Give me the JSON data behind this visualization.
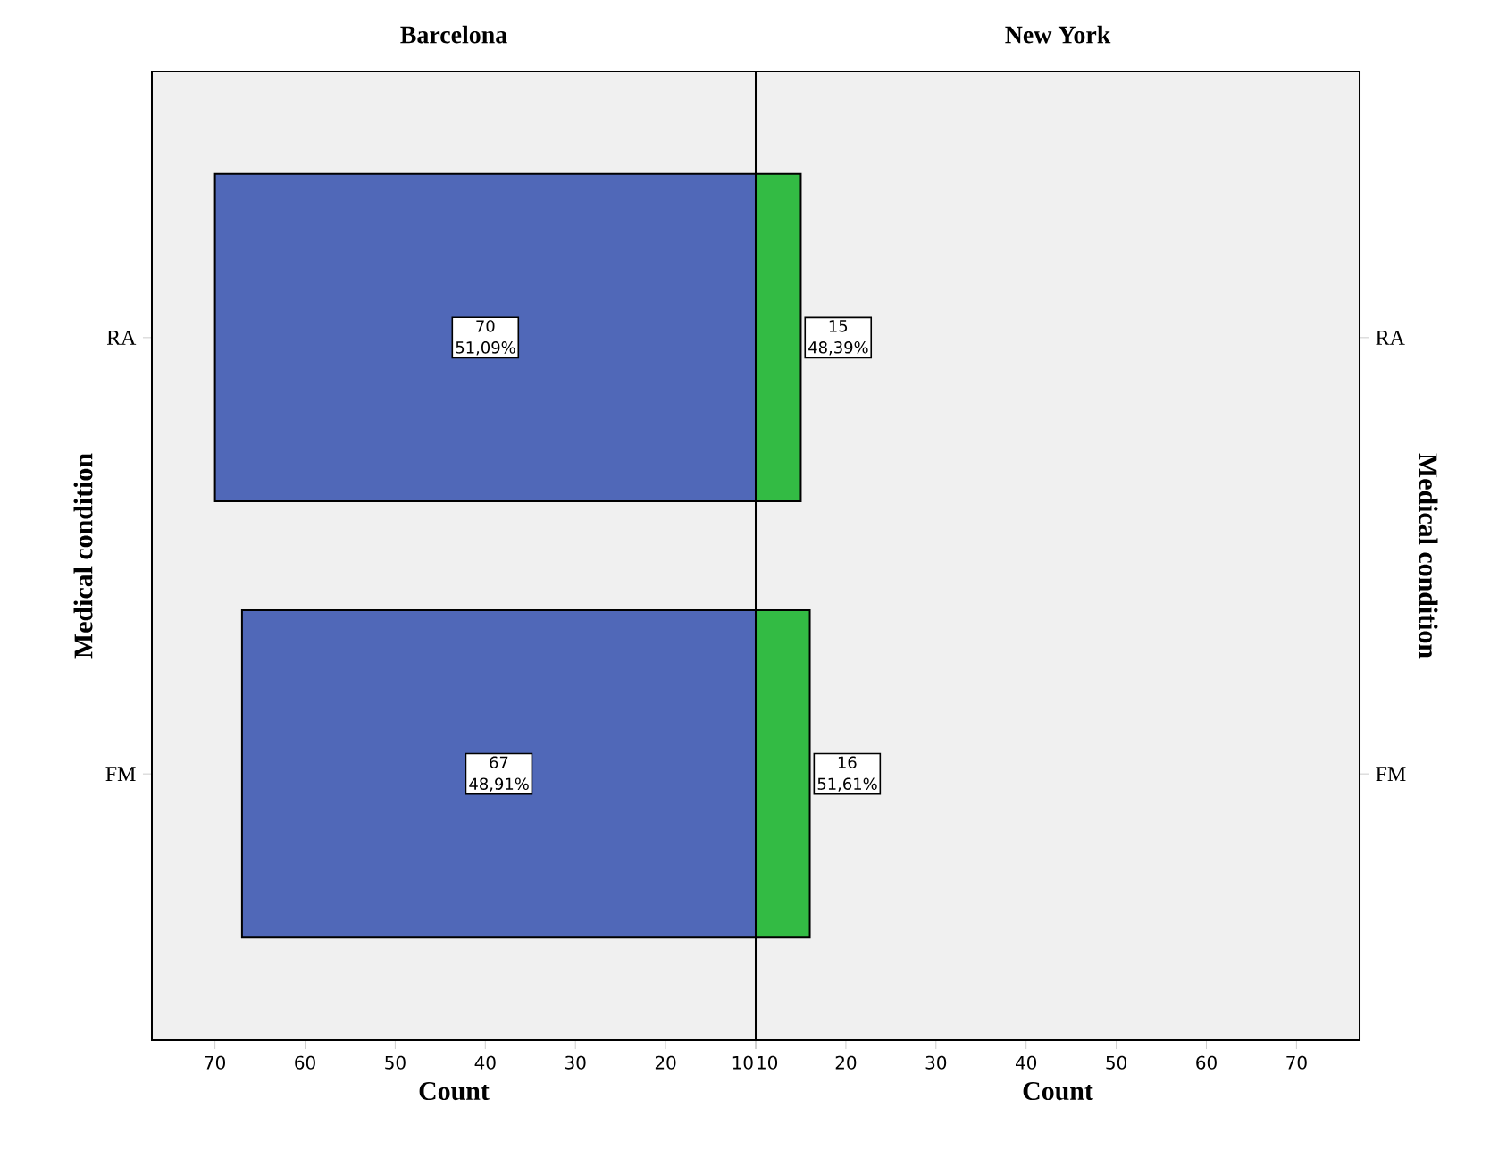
{
  "chart_data": [
    {
      "type": "bar",
      "orientation": "horizontal",
      "title": "Barcelona",
      "xlabel": "Count",
      "ylabel": "Medical condition",
      "categories": [
        "RA",
        "FM"
      ],
      "values": [
        70,
        67
      ],
      "color": "#5068b8",
      "xlim": [
        77,
        10
      ],
      "xticks": [
        70,
        60,
        50,
        40,
        30,
        20,
        10
      ],
      "value_labels": [
        "70 51,09%",
        "67 48,91%"
      ]
    },
    {
      "type": "bar",
      "orientation": "horizontal",
      "title": "New York",
      "xlabel": "Count",
      "ylabel": "Medical condition",
      "categories": [
        "RA",
        "FM"
      ],
      "values": [
        15,
        16
      ],
      "color": "#33bb44",
      "xlim": [
        10,
        77
      ],
      "xticks": [
        10,
        20,
        30,
        40,
        50,
        60,
        70
      ],
      "value_labels": [
        "15 48,39%",
        "16 51,61%"
      ]
    }
  ]
}
